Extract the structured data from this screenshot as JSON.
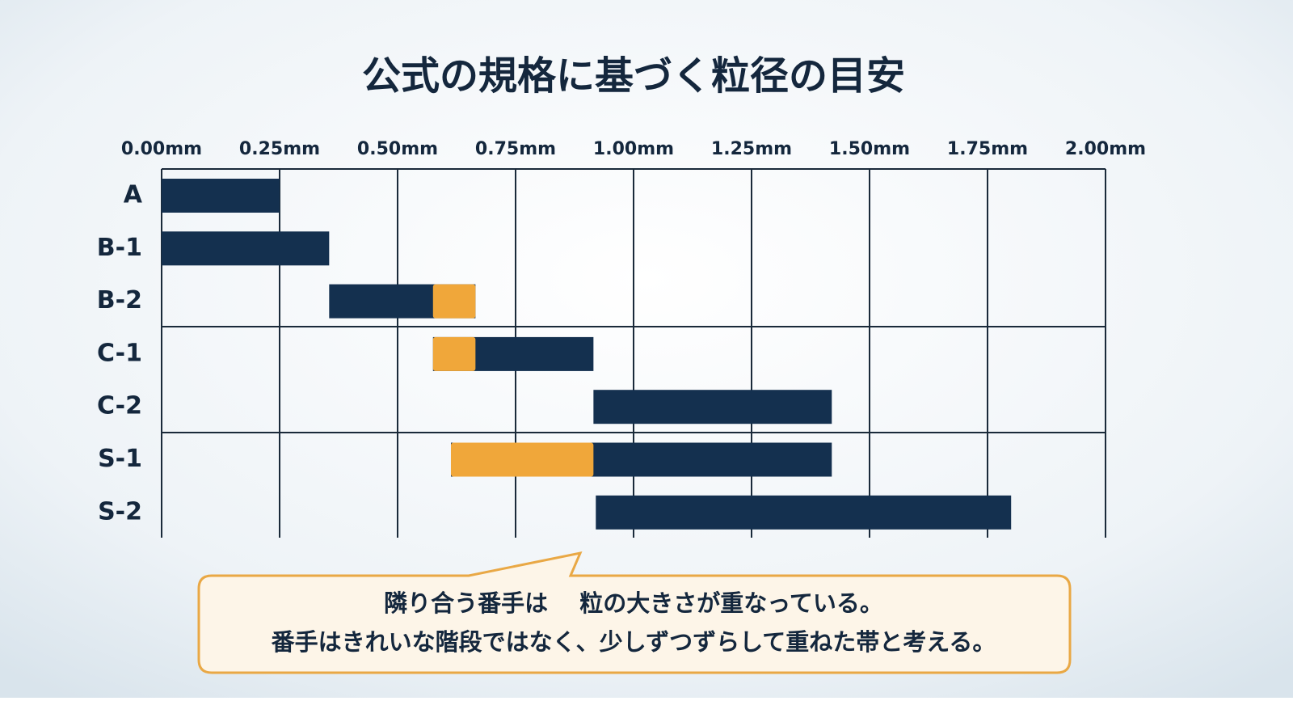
{
  "chart_data": {
    "type": "range_bar",
    "title": "公式の規格に基づく粒径の目安",
    "categories": [
      "A",
      "B-1",
      "B-2",
      "C-1",
      "C-2",
      "S-1",
      "S-2"
    ],
    "ranges": [
      [
        0,
        0.25
      ],
      [
        0,
        0.355
      ],
      [
        0.355,
        0.665
      ],
      [
        0.575,
        0.915
      ],
      [
        0.915,
        1.42
      ],
      [
        0.613,
        1.42
      ],
      [
        0.92,
        1.8
      ]
    ],
    "overlaps": [
      null,
      null,
      [
        0.575,
        0.665
      ],
      [
        0.575,
        0.665
      ],
      null,
      [
        0.613,
        0.915
      ],
      null
    ],
    "color": "#14304f",
    "overlap_color": "#f0a73a",
    "xlim": [
      0,
      2
    ],
    "xticks": [
      {
        "value": 0,
        "label": "0.00mm"
      },
      {
        "value": 0.25,
        "label": "0.25mm"
      },
      {
        "value": 0.5,
        "label": "0.50mm"
      },
      {
        "value": 0.75,
        "label": "0.75mm"
      },
      {
        "value": 1,
        "label": "1.00mm"
      },
      {
        "value": 1.25,
        "label": "1.25mm"
      },
      {
        "value": 1.5,
        "label": "1.50mm"
      },
      {
        "value": 1.75,
        "label": "1.75mm"
      },
      {
        "value": 2,
        "label": "2.00mm"
      }
    ],
    "grid": true,
    "annotations": [
      "隣り合う番手は　 粒の大きさが重なっている。",
      "番手はきれいな階段ではなく、少しずつずらして重ねた帯と考える。"
    ]
  }
}
